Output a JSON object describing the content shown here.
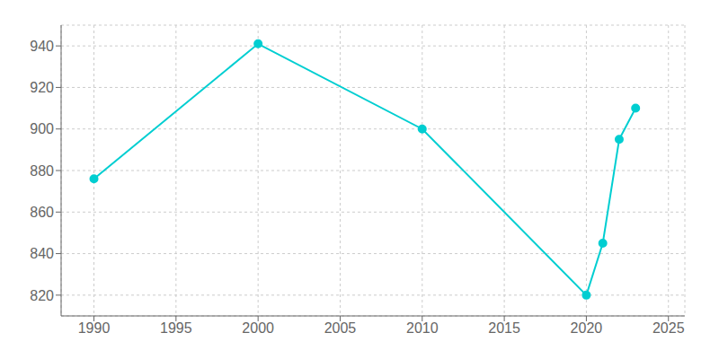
{
  "chart_data": {
    "type": "line",
    "x": [
      1990,
      2000,
      2010,
      2020,
      2021,
      2022,
      2023
    ],
    "values": [
      876,
      941,
      900,
      820,
      845,
      895,
      910
    ],
    "color": "#00CED1",
    "marker": "circle",
    "xlim": [
      1988,
      2026
    ],
    "ylim": [
      810,
      950
    ],
    "xticks": [
      1990,
      1995,
      2000,
      2005,
      2010,
      2015,
      2020,
      2025
    ],
    "yticks": [
      820,
      840,
      860,
      880,
      900,
      920,
      940
    ],
    "grid": true
  }
}
